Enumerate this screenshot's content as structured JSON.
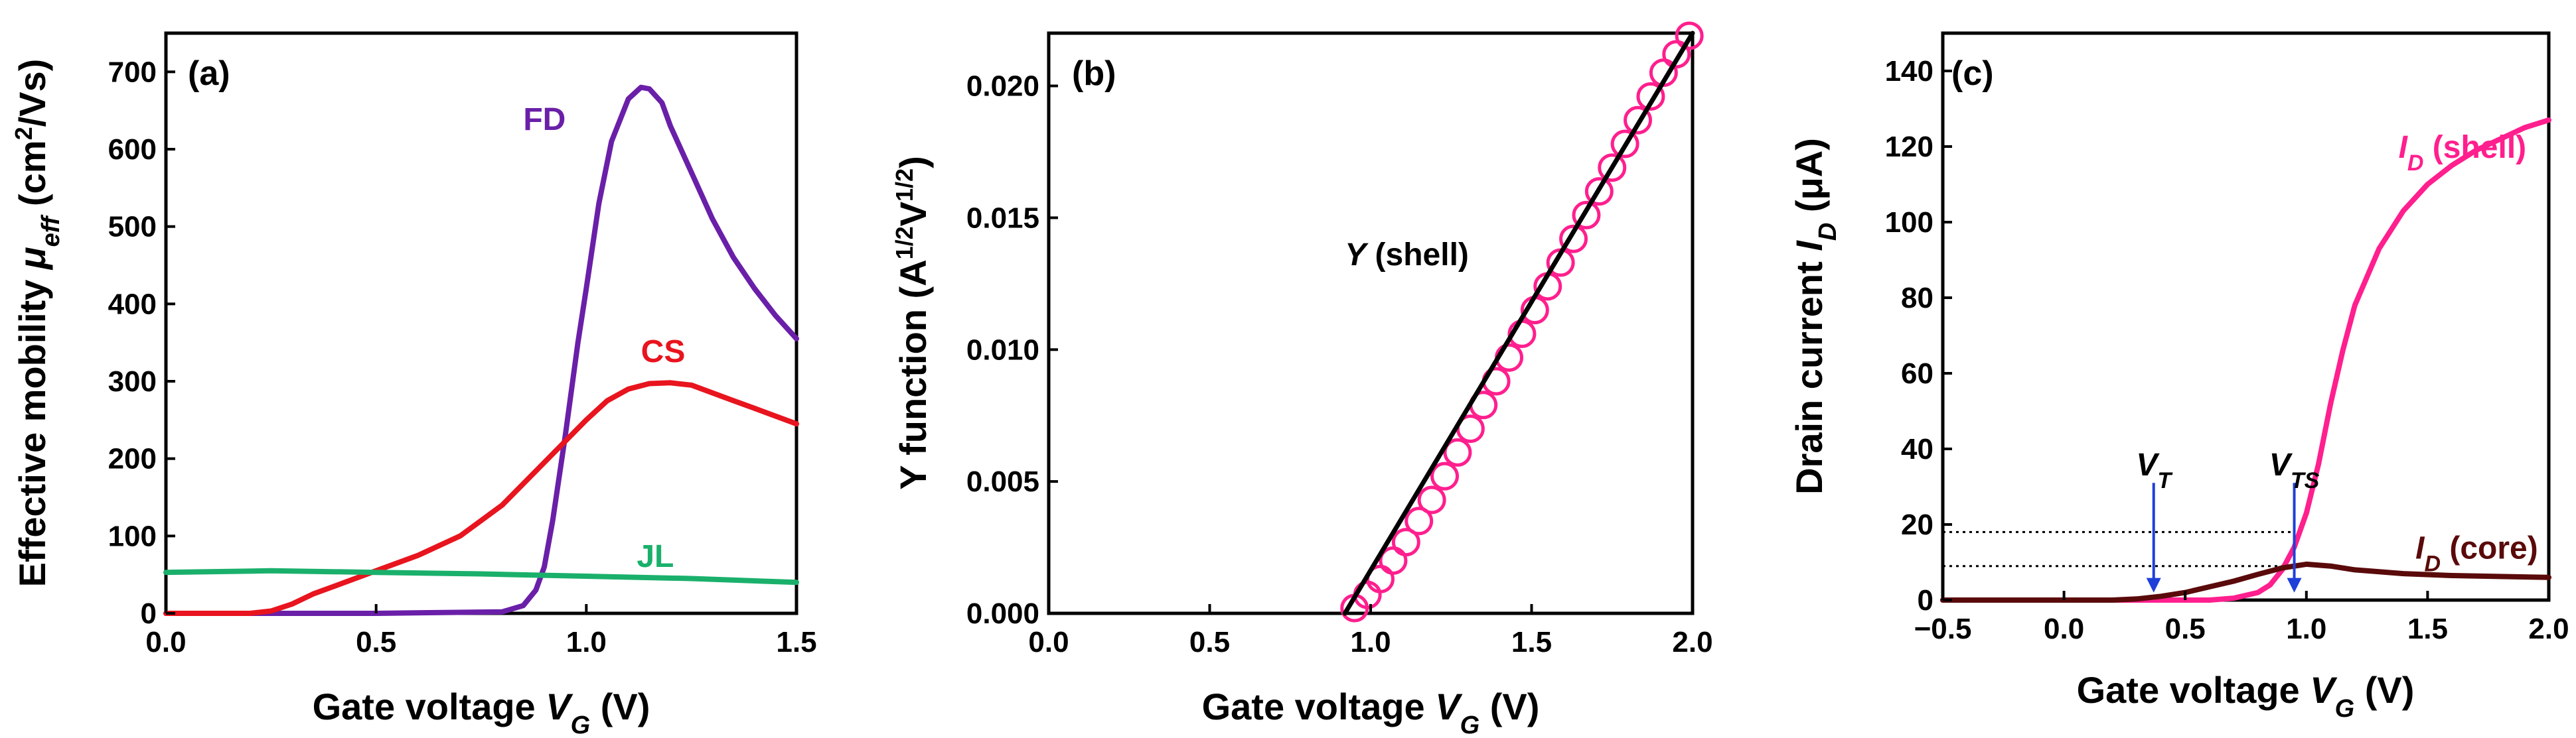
{
  "chart_data": [
    {
      "type": "line",
      "panel_label": "(a)",
      "xlabel": {
        "prefix": "Gate voltage ",
        "var": "V",
        "sub": "G",
        "suffix": " (V)"
      },
      "ylabel": {
        "prefix": "Effective mobility ",
        "var": "μ",
        "sub": "eff",
        "suffix": " (cm",
        "sup": "2",
        "suffix2": "/Vs)"
      },
      "xlim": [
        0.0,
        1.5
      ],
      "ylim": [
        0,
        750
      ],
      "xticks": [
        0.0,
        0.5,
        1.0,
        1.5
      ],
      "xtick_labels": [
        "0.0",
        "0.5",
        "1.0",
        "1.5"
      ],
      "yticks": [
        0,
        100,
        200,
        300,
        400,
        500,
        600,
        700
      ],
      "ytick_labels": [
        "0",
        "100",
        "200",
        "300",
        "400",
        "500",
        "600",
        "700"
      ],
      "series": [
        {
          "name": "FD",
          "color": "#6a1fa8",
          "x": [
            0.0,
            0.5,
            0.8,
            0.85,
            0.88,
            0.9,
            0.92,
            0.95,
            0.98,
            1.0,
            1.03,
            1.06,
            1.1,
            1.13,
            1.15,
            1.18,
            1.2,
            1.25,
            1.3,
            1.35,
            1.4,
            1.45,
            1.5
          ],
          "y": [
            0,
            0,
            2,
            10,
            30,
            60,
            120,
            230,
            350,
            420,
            530,
            610,
            665,
            680,
            678,
            660,
            630,
            570,
            510,
            460,
            420,
            385,
            355
          ]
        },
        {
          "name": "CS",
          "color": "#e8141e",
          "x": [
            0.0,
            0.2,
            0.25,
            0.3,
            0.35,
            0.4,
            0.5,
            0.6,
            0.7,
            0.8,
            0.9,
            1.0,
            1.05,
            1.1,
            1.15,
            1.2,
            1.25,
            1.3,
            1.35,
            1.4,
            1.45,
            1.5
          ],
          "y": [
            0,
            0,
            3,
            12,
            25,
            35,
            55,
            75,
            100,
            140,
            195,
            250,
            275,
            290,
            297,
            298,
            295,
            285,
            275,
            265,
            255,
            245
          ]
        },
        {
          "name": "JL",
          "color": "#1ab06b",
          "x": [
            0.0,
            0.25,
            0.5,
            0.75,
            1.0,
            1.25,
            1.5
          ],
          "y": [
            53,
            55,
            53,
            51,
            48,
            45,
            40
          ]
        }
      ],
      "annotations": [
        {
          "text": "FD",
          "color": "#6a1fa8",
          "x": 0.85,
          "y": 625
        },
        {
          "text": "CS",
          "color": "#e8141e",
          "x": 1.13,
          "y": 325
        },
        {
          "text": "JL",
          "color": "#1ab06b",
          "x": 1.12,
          "y": 60
        }
      ]
    },
    {
      "type": "line",
      "panel_label": "(b)",
      "xlabel": {
        "prefix": "Gate voltage ",
        "var": "V",
        "sub": "G",
        "suffix": " (V)"
      },
      "ylabel": {
        "prefix": "Y function (A",
        "sup": "1/2",
        "mid": "V",
        "sup2": "1/2",
        "suffix": ")"
      },
      "xlim": [
        0.0,
        2.0
      ],
      "ylim": [
        0.0,
        0.022
      ],
      "xticks": [
        0.0,
        0.5,
        1.0,
        1.5,
        2.0
      ],
      "xtick_labels": [
        "0.0",
        "0.5",
        "1.0",
        "1.5",
        "2.0"
      ],
      "yticks": [
        0.0,
        0.005,
        0.01,
        0.015,
        0.02
      ],
      "ytick_labels": [
        "0.000",
        "0.005",
        "0.010",
        "0.015",
        "0.020"
      ],
      "series": [
        {
          "name": "Y (shell) data",
          "style": "markers",
          "color": "#ff1f8e",
          "x": [
            0.95,
            0.99,
            1.03,
            1.07,
            1.11,
            1.15,
            1.19,
            1.23,
            1.27,
            1.31,
            1.35,
            1.39,
            1.43,
            1.47,
            1.51,
            1.55,
            1.59,
            1.63,
            1.67,
            1.71,
            1.75,
            1.79,
            1.83,
            1.87,
            1.91,
            1.95,
            1.99
          ],
          "y": [
            0.0002,
            0.0007,
            0.0013,
            0.002,
            0.0027,
            0.0035,
            0.0043,
            0.0052,
            0.0061,
            0.007,
            0.0079,
            0.0088,
            0.0097,
            0.0106,
            0.0115,
            0.0124,
            0.0133,
            0.0142,
            0.0151,
            0.016,
            0.0169,
            0.0178,
            0.0187,
            0.0196,
            0.0205,
            0.0212,
            0.0219
          ]
        },
        {
          "name": "Y (shell) fit",
          "style": "line",
          "color": "#000000",
          "x": [
            0.92,
            2.0
          ],
          "y": [
            0.0,
            0.022
          ]
        }
      ],
      "annotations": [
        {
          "text_var": "Y",
          "text_rest": " (shell)",
          "color": "#000000",
          "x": 0.92,
          "y": 0.0132
        }
      ]
    },
    {
      "type": "line",
      "panel_label": "(c)",
      "xlabel": {
        "prefix": "Gate voltage ",
        "var": "V",
        "sub": "G",
        "suffix": " (V)"
      },
      "ylabel": {
        "prefix": "Drain current ",
        "var": "I",
        "sub": "D",
        "suffix": " (μA)"
      },
      "xlim": [
        -0.5,
        2.0
      ],
      "ylim": [
        0,
        150
      ],
      "xticks": [
        -0.5,
        0.0,
        0.5,
        1.0,
        1.5,
        2.0
      ],
      "xtick_labels": [
        "−0.5",
        "0.0",
        "0.5",
        "1.0",
        "1.5",
        "2.0"
      ],
      "yticks": [
        0,
        20,
        40,
        60,
        80,
        100,
        120,
        140
      ],
      "ytick_labels": [
        "0",
        "20",
        "40",
        "60",
        "80",
        "100",
        "120",
        "140"
      ],
      "series": [
        {
          "name": "I_D (shell)",
          "color": "#ff1f8e",
          "x": [
            -0.5,
            0.6,
            0.7,
            0.8,
            0.85,
            0.9,
            0.95,
            1.0,
            1.05,
            1.1,
            1.15,
            1.2,
            1.3,
            1.4,
            1.5,
            1.6,
            1.7,
            1.8,
            1.9,
            2.0
          ],
          "y": [
            0,
            0,
            0.5,
            2,
            4,
            8,
            14,
            23,
            36,
            52,
            66,
            78,
            93,
            103,
            110,
            115,
            119,
            122,
            125,
            127
          ]
        },
        {
          "name": "I_D (core)",
          "color": "#5a0a0a",
          "x": [
            -0.5,
            0.2,
            0.3,
            0.4,
            0.5,
            0.6,
            0.7,
            0.8,
            0.9,
            1.0,
            1.1,
            1.2,
            1.4,
            1.6,
            2.0
          ],
          "y": [
            0,
            0,
            0.3,
            1,
            2,
            3.5,
            5,
            6.8,
            8.5,
            9.5,
            9,
            8,
            7,
            6.5,
            6
          ]
        }
      ],
      "reference_lines": [
        {
          "y": 18,
          "x_start": -0.5,
          "x_end": 0.95,
          "style": "dotted"
        },
        {
          "y": 9,
          "x_start": -0.5,
          "x_end": 1.0,
          "style": "dotted"
        }
      ],
      "markers": [
        {
          "name": "V_T",
          "var": "V",
          "sub": "T",
          "x": 0.37,
          "color": "#1f3fd9"
        },
        {
          "name": "V_TS",
          "var": "V",
          "sub": "TS",
          "x": 0.95,
          "color": "#1f3fd9"
        }
      ],
      "annotations": [
        {
          "var": "I",
          "sub": "D",
          "rest": " (shell)",
          "color": "#ff1f8e",
          "x": 1.38,
          "y": 117
        },
        {
          "var": "I",
          "sub": "D",
          "rest": " (core)",
          "color": "#5a0a0a",
          "x": 1.45,
          "y": 11
        }
      ]
    }
  ]
}
